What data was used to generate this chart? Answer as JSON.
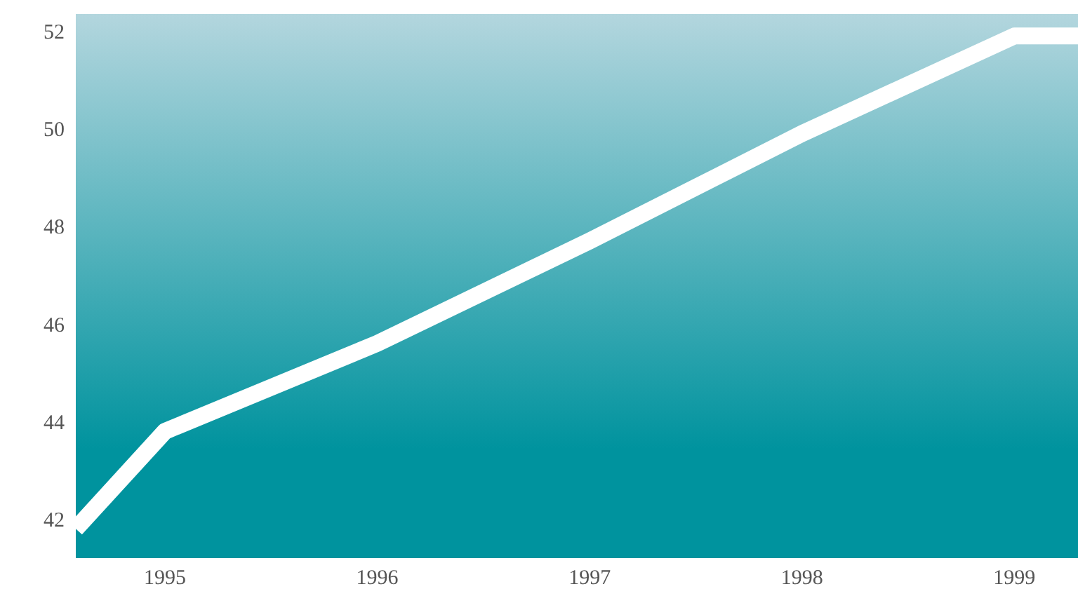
{
  "chart_data": {
    "type": "line",
    "x": [
      1994.58,
      1995,
      1996,
      1997,
      1998,
      1999,
      1999.3
    ],
    "series": [
      {
        "color": "#ffffff",
        "values": [
          41.8,
          43.8,
          45.6,
          47.7,
          49.9,
          51.9,
          51.9
        ]
      }
    ],
    "xlim": [
      1994.58,
      1999.3
    ],
    "xticks": [
      1995,
      1996,
      1997,
      1998,
      1999
    ],
    "ylim": [
      41.2,
      52.35
    ],
    "yticks": [
      42,
      44,
      46,
      48,
      50,
      52
    ],
    "marker": "none",
    "legend": false,
    "grid": false
  }
}
